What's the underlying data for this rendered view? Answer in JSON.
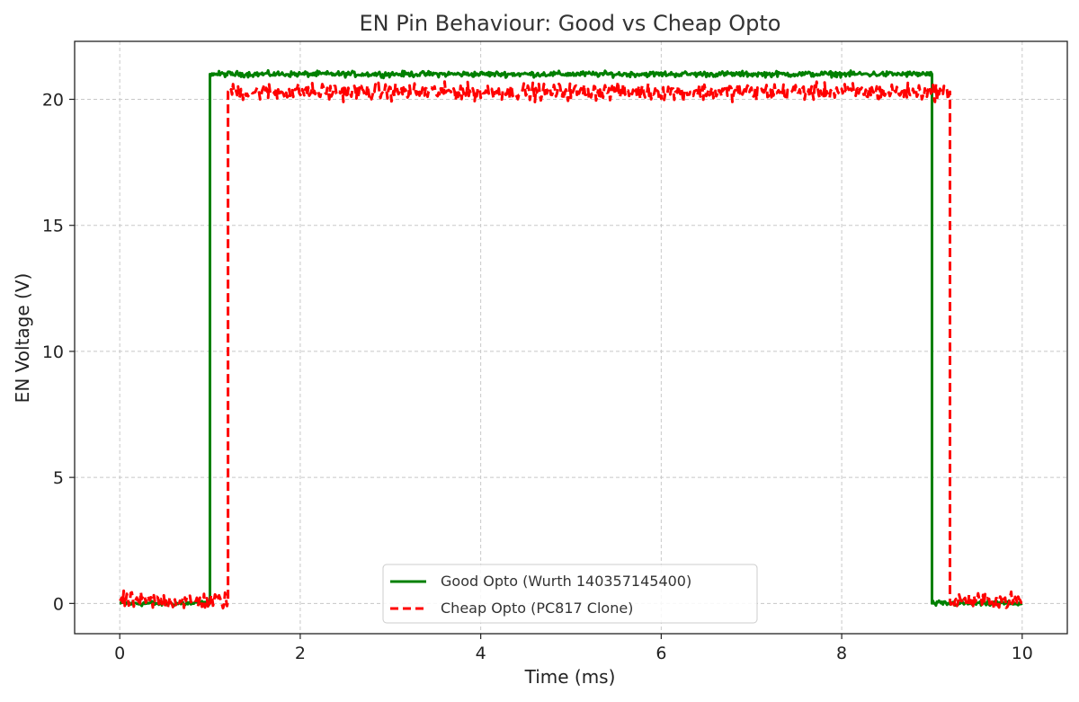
{
  "chart_data": {
    "type": "line",
    "title": "EN Pin Behaviour: Good vs Cheap Opto",
    "xlabel": "Time (ms)",
    "ylabel": "EN Voltage (V)",
    "xlim": [
      -0.5,
      10.5
    ],
    "ylim": [
      -1.2,
      22.3
    ],
    "xticks": [
      0,
      2,
      4,
      6,
      8,
      10
    ],
    "yticks": [
      0,
      5,
      10,
      15,
      20
    ],
    "grid": true,
    "legend_position": "bottom-center",
    "series": [
      {
        "name": "Good Opto (Wurth 140357145400)",
        "color": "#008000",
        "line_style": "solid",
        "points": [
          [
            0,
            0
          ],
          [
            1.0,
            0
          ],
          [
            1.0,
            21.0
          ],
          [
            9.0,
            21.0
          ],
          [
            9.0,
            0
          ],
          [
            10.0,
            0
          ]
        ],
        "noise_amplitude": 0.1
      },
      {
        "name": "Cheap Opto (PC817 Clone)",
        "color": "#ff0000",
        "line_style": "dashed",
        "points": [
          [
            0,
            0.1
          ],
          [
            1.2,
            0.1
          ],
          [
            1.2,
            20.3
          ],
          [
            9.2,
            20.3
          ],
          [
            9.2,
            0.1
          ],
          [
            10.0,
            0.1
          ]
        ],
        "noise_amplitude": 0.3
      }
    ]
  }
}
